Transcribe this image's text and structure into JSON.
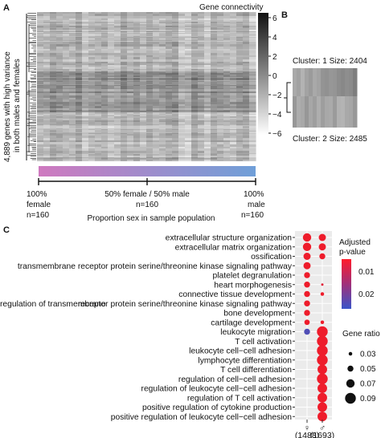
{
  "colors": {
    "heatmap_low": "#ffffff",
    "heatmap_high": "#111111",
    "sex_bar_start": "#cf79bf",
    "sex_bar_end": "#6f9fd8",
    "dot_high_sig": "#ee1c2b",
    "dot_low_sig": "#3b55c9",
    "panel_bg": "#ebebeb"
  },
  "panel_a": {
    "label": "A",
    "y_title_line1": "4,889 genes with high variance",
    "y_title_line2": "in both males and females",
    "colorbar": {
      "title": "Gene connectivity",
      "ticks": [
        "6",
        "4",
        "2",
        "0",
        "−2",
        "−4",
        "−6"
      ]
    },
    "sex_axis": {
      "left": [
        "100%",
        "female",
        "n=160"
      ],
      "mid": [
        "50% female / 50% male",
        "n=160"
      ],
      "right": [
        "100%",
        "male",
        "n=160"
      ],
      "title": "Proportion sex in sample population"
    }
  },
  "panel_b": {
    "label": "B",
    "cluster1": "Cluster: 1 Size: 2404",
    "cluster2": "Cluster: 2 Size: 2485"
  },
  "chart_data": {
    "type": "scatter",
    "label": "C",
    "x_categories": [
      "♀",
      "♂"
    ],
    "x_counts": [
      "(1488)",
      "(1693)"
    ],
    "terms": [
      "extracellular structure organization",
      "extracellular matrix organization",
      "ossification",
      "transmembrane receptor protein serine/threonine kinase signaling pathway",
      "platelet degranulation",
      "heart morphogenesis",
      "connective tissue development",
      "regulation of transmembrane receptor protein serine/threonine kinase signaling pathway",
      "bone development",
      "cartilage development",
      "leukocyte migration",
      "T cell activation",
      "leukocyte cell−cell adhesion",
      "lymphocyte differentiation",
      "T cell differentiation",
      "regulation of cell−cell adhesion",
      "regulation of leukocyte cell−cell adhesion",
      "regulation of T cell activation",
      "positive regulation of cytokine production",
      "positive regulation of leukocyte cell−cell adhesion"
    ],
    "label_segments": {
      "regulation of transmembrane receptor protein serine/threonine kinase signaling pathway": [
        "regulation of transmembrane",
        "receptor protein serine/threonine kinase signaling pathway"
      ]
    },
    "series": [
      {
        "name": "♀",
        "gene_ratio": [
          0.07,
          0.07,
          0.06,
          0.06,
          0.05,
          0.05,
          0.05,
          0.05,
          0.05,
          0.045,
          0.05,
          null,
          null,
          null,
          null,
          null,
          null,
          null,
          null,
          null
        ],
        "p_adjust": [
          0.0,
          0.0,
          0.0,
          0.0,
          0.0,
          0.0,
          0.0,
          0.0,
          0.0,
          0.0,
          0.022,
          null,
          null,
          null,
          null,
          null,
          null,
          null,
          null,
          null
        ]
      },
      {
        "name": "♂",
        "gene_ratio": [
          0.06,
          0.06,
          0.05,
          null,
          null,
          0.02,
          0.03,
          null,
          null,
          0.03,
          0.09,
          0.09,
          0.09,
          0.09,
          0.08,
          0.09,
          0.08,
          0.08,
          0.08,
          0.08
        ],
        "p_adjust": [
          0.0,
          0.0,
          0.0,
          null,
          null,
          0.002,
          0.0,
          null,
          null,
          0.0,
          0.0,
          0.0,
          0.0,
          0.0,
          0.0,
          0.0,
          0.0,
          0.0,
          0.0,
          0.0
        ]
      }
    ],
    "legend_color": {
      "title_line1": "Adjusted",
      "title_line2": "p-value",
      "ticks": [
        "0.01",
        "0.02"
      ]
    },
    "legend_size": {
      "title": "Gene ratio",
      "items": [
        "0.03",
        "0.05",
        "0.07",
        "0.09"
      ],
      "values": [
        0.03,
        0.05,
        0.07,
        0.09
      ]
    }
  }
}
